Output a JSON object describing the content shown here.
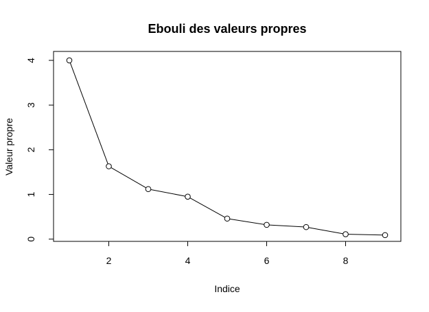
{
  "chart_data": {
    "type": "line",
    "title": "Ebouli des valeurs propres",
    "xlabel": "Indice",
    "ylabel": "Valeur propre",
    "x": [
      1,
      2,
      3,
      4,
      5,
      6,
      7,
      8,
      9
    ],
    "y": [
      4.0,
      1.63,
      1.12,
      0.95,
      0.46,
      0.32,
      0.27,
      0.11,
      0.09
    ],
    "xlim": [
      0.6,
      9.4
    ],
    "ylim": [
      -0.05,
      4.2
    ],
    "xticks": [
      "2",
      "4",
      "6",
      "8"
    ],
    "yticks": [
      "0",
      "1",
      "2",
      "3",
      "4"
    ],
    "grid": false,
    "marker": "open-circle",
    "line_color": "#000000"
  }
}
